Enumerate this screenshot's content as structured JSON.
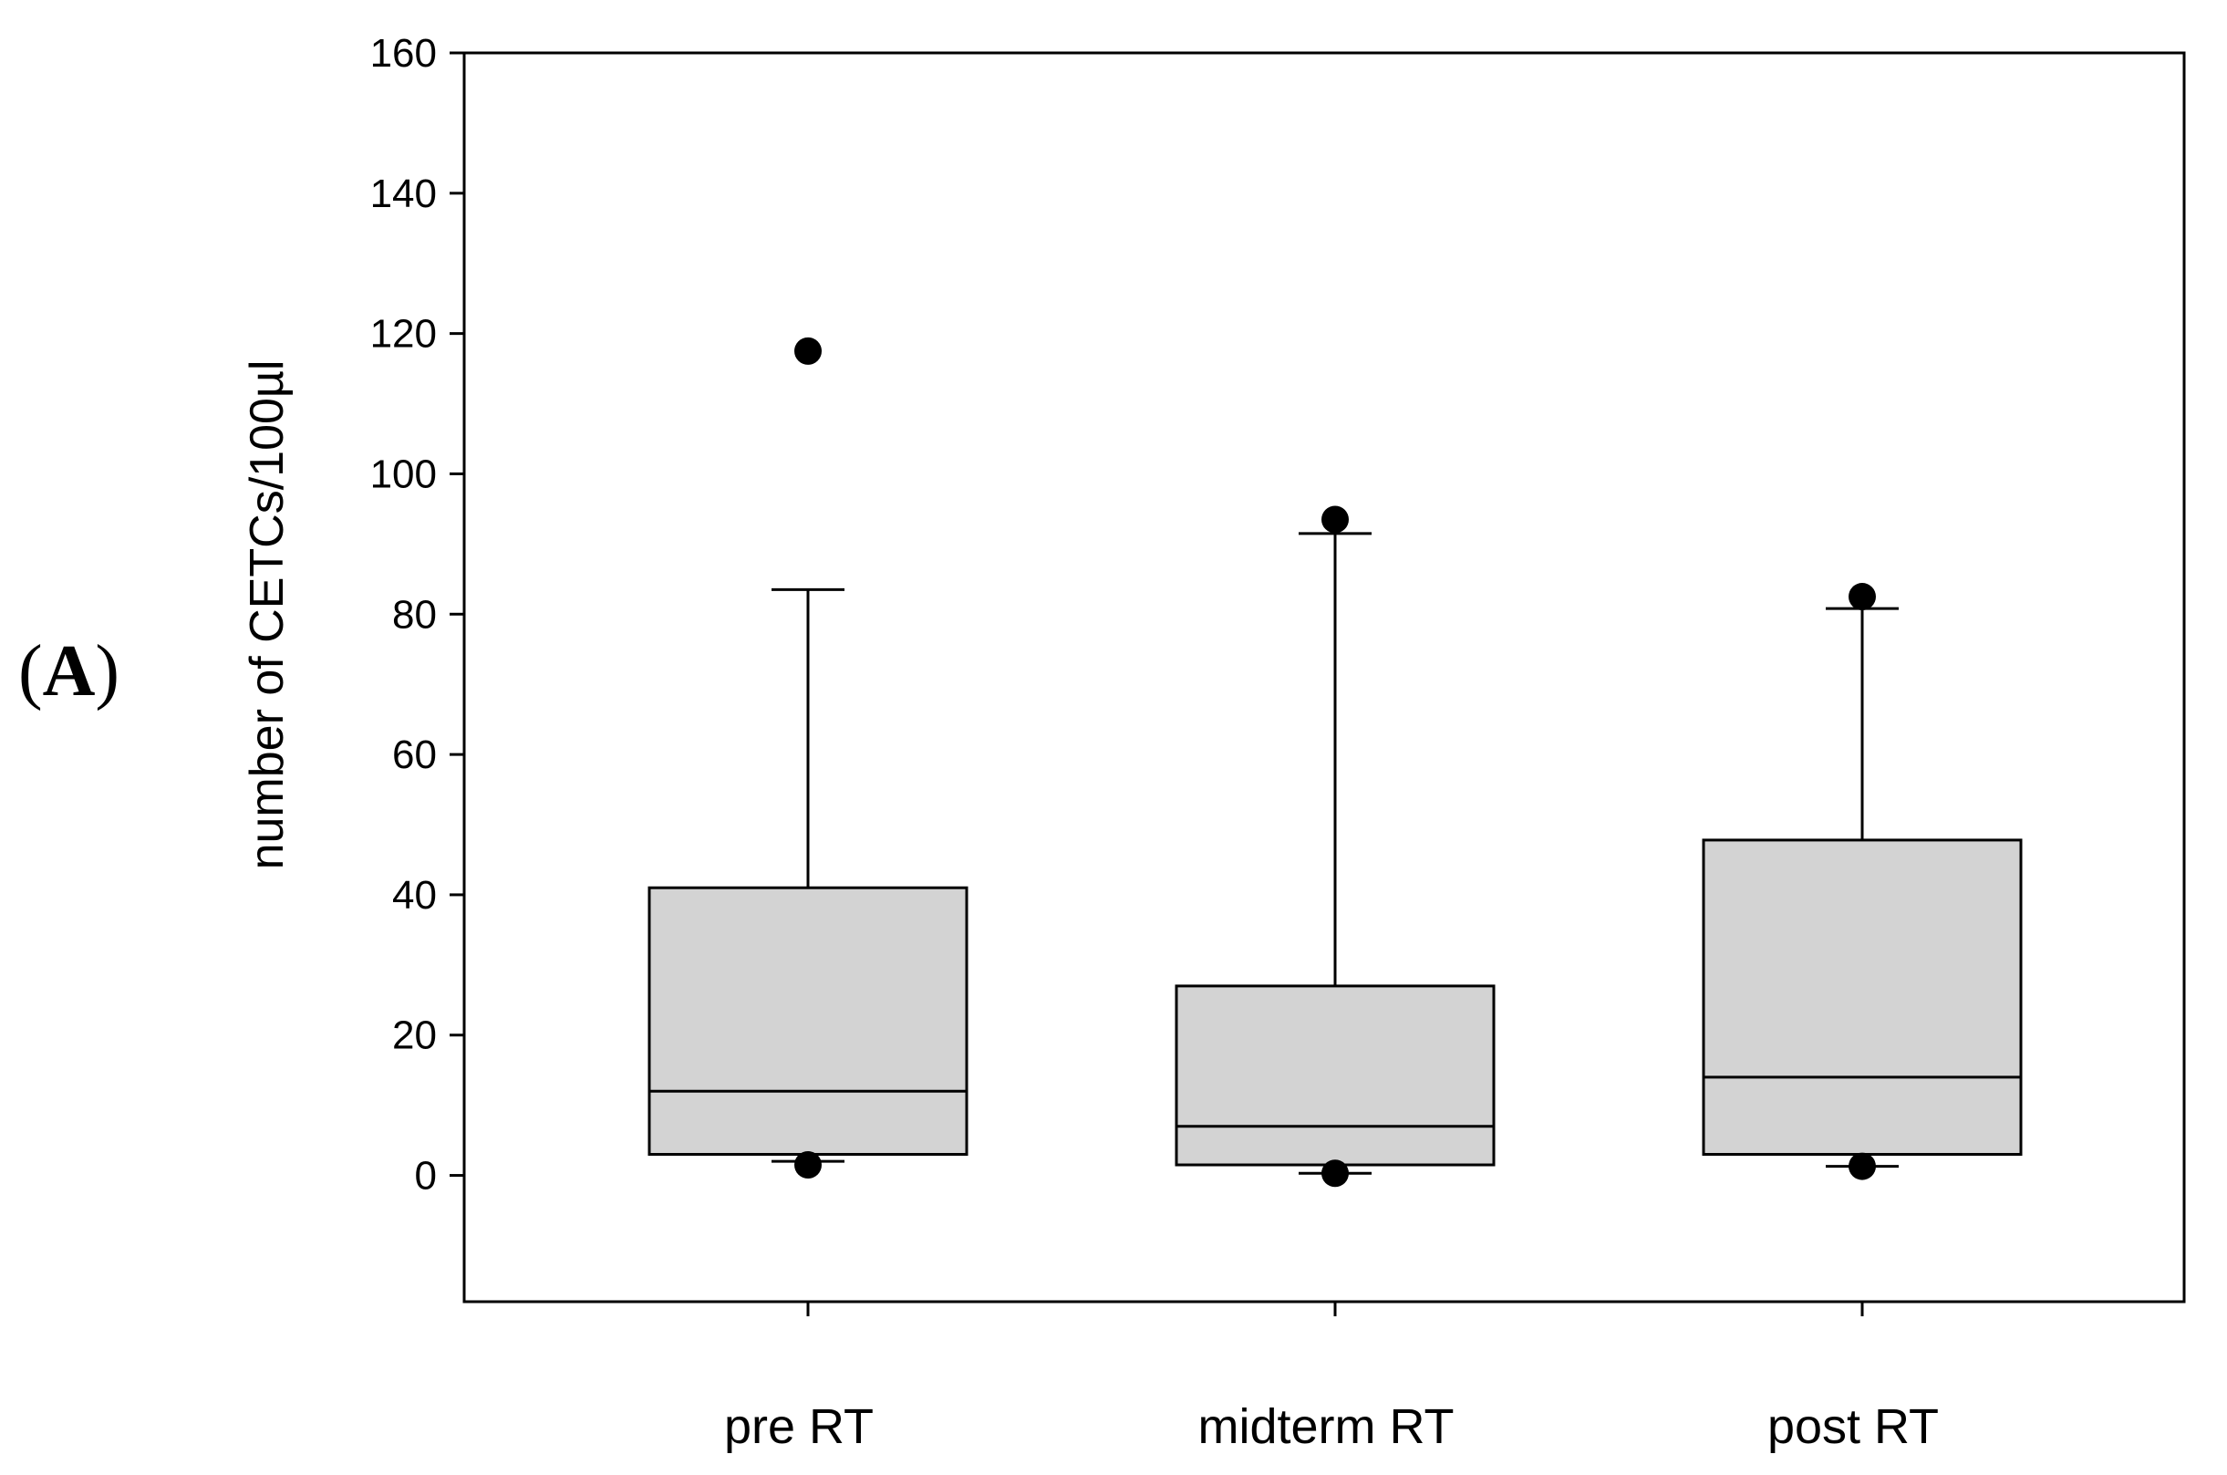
{
  "panel_label": {
    "open": "(",
    "letter": "A",
    "close": ")"
  },
  "chart_data": {
    "type": "box",
    "title": "",
    "xlabel": "",
    "ylabel": "number of CETCs/100µl",
    "ylim": [
      -18,
      160
    ],
    "yticks": [
      0,
      20,
      40,
      60,
      80,
      100,
      120,
      140,
      160
    ],
    "grid": false,
    "categories": [
      "pre RT",
      "midterm RT",
      "post RT"
    ],
    "boxes": [
      {
        "category": "pre RT",
        "whisker_low": 2,
        "q1": 3,
        "median": 12,
        "q3": 41,
        "whisker_high": 83.5,
        "outliers": [
          117.5,
          1.5
        ]
      },
      {
        "category": "midterm RT",
        "whisker_low": 0.3,
        "q1": 1.5,
        "median": 7,
        "q3": 27,
        "whisker_high": 91.5,
        "outliers": [
          93.5,
          0.3
        ]
      },
      {
        "category": "post RT",
        "whisker_low": 1.3,
        "q1": 3,
        "median": 14,
        "q3": 47.8,
        "whisker_high": 80.8,
        "outliers": [
          82.5,
          1.3
        ]
      }
    ],
    "box_fill": "#d3d3d3",
    "stroke_color": "#000000"
  }
}
